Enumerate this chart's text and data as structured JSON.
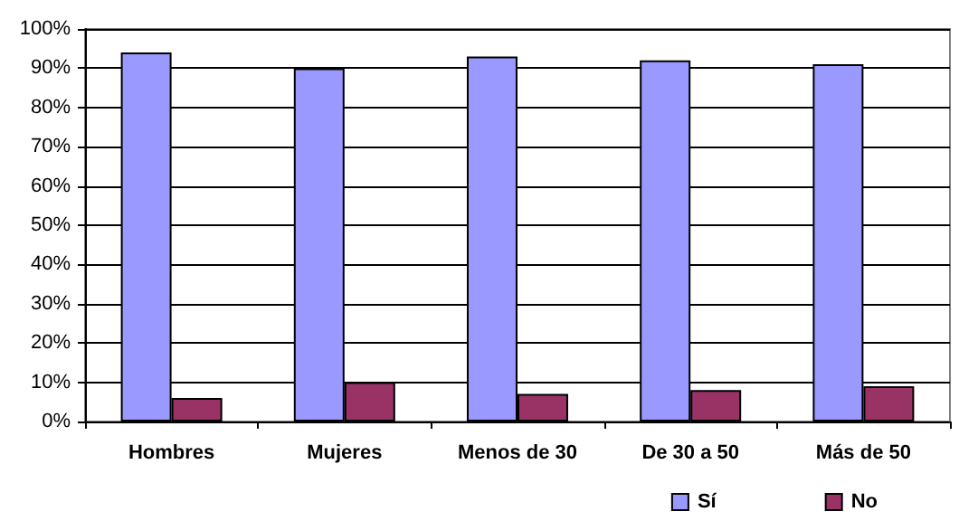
{
  "chart_data": {
    "type": "bar",
    "categories": [
      "Hombres",
      "Mujeres",
      "Menos de 30",
      "De 30 a 50",
      "Más de 50"
    ],
    "series": [
      {
        "name": "Sí",
        "color": "#9999ff",
        "values": [
          94,
          90,
          93,
          92,
          91
        ]
      },
      {
        "name": "No",
        "color": "#993366",
        "values": [
          6,
          10,
          7,
          8,
          9
        ]
      }
    ],
    "ylim": [
      0,
      100
    ],
    "yticks": [
      {
        "value": 0,
        "label": "0%"
      },
      {
        "value": 10,
        "label": "10%"
      },
      {
        "value": 20,
        "label": "20%"
      },
      {
        "value": 30,
        "label": "30%"
      },
      {
        "value": 40,
        "label": "40%"
      },
      {
        "value": 50,
        "label": "50%"
      },
      {
        "value": 60,
        "label": "60%"
      },
      {
        "value": 70,
        "label": "70%"
      },
      {
        "value": 80,
        "label": "80%"
      },
      {
        "value": 90,
        "label": "90%"
      },
      {
        "value": 100,
        "label": "100%"
      }
    ],
    "grid": "y",
    "legend": "bottom right"
  }
}
